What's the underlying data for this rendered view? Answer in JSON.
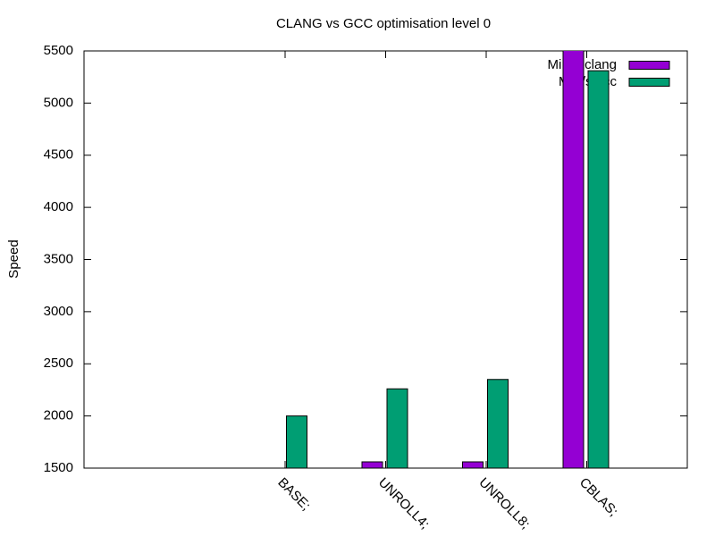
{
  "chart_data": {
    "type": "bar",
    "title": "CLANG vs GCC optimisation level 0",
    "y_label": "Speed",
    "categories": [
      "BASE;",
      "UNROLL4;",
      "UNROLL8;",
      "CBLAS;"
    ],
    "series": [
      {
        "name": "MiB/s clang",
        "color": "#9400d3",
        "values": [
          1450,
          1560,
          1560,
          5600
        ]
      },
      {
        "name": "MiB/s gcc",
        "color": "#009e73",
        "values": [
          2000,
          2260,
          2350,
          5310
        ]
      }
    ],
    "ylim": [
      1500,
      5500
    ],
    "yticks": [
      1500,
      2000,
      2500,
      3000,
      3500,
      4000,
      4500,
      5000,
      5500
    ],
    "legend": "top-right"
  }
}
